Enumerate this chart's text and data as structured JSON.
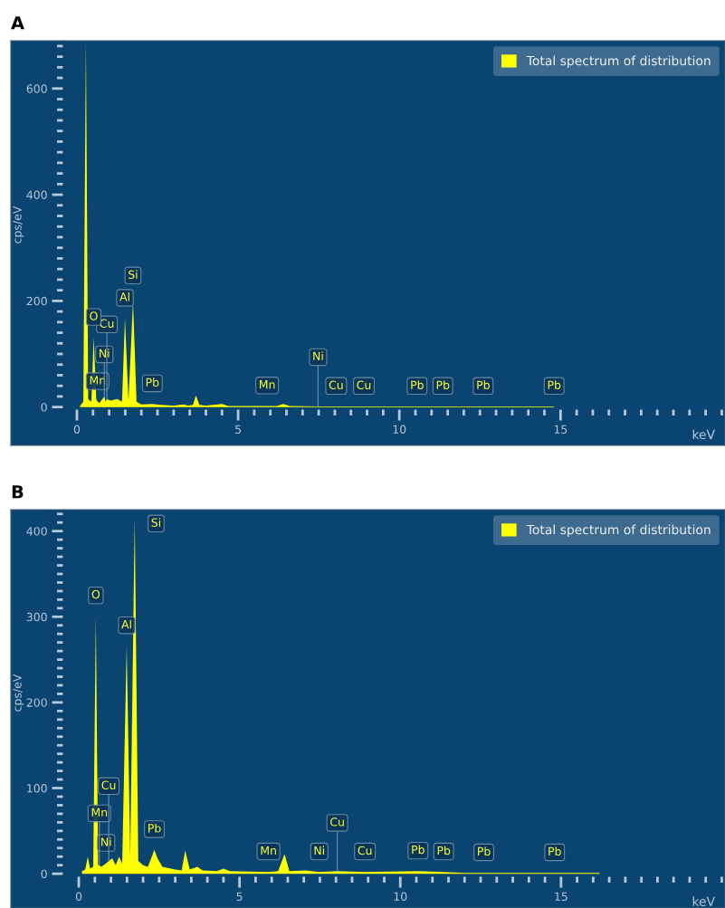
{
  "chart_data": [
    {
      "type": "area",
      "title": "A",
      "xlabel": "keV",
      "ylabel": "cps/eV",
      "x": [
        0.1,
        0.2,
        0.28,
        0.35,
        0.45,
        0.52,
        0.6,
        0.64,
        0.7,
        0.85,
        0.89,
        0.93,
        1.04,
        1.25,
        1.4,
        1.49,
        1.6,
        1.74,
        1.85,
        2.0,
        2.34,
        2.6,
        3.0,
        3.3,
        3.45,
        3.6,
        3.69,
        3.8,
        4.0,
        4.5,
        4.7,
        5.9,
        6.2,
        6.4,
        6.6,
        7.48,
        8.04,
        8.9,
        10.55,
        11.35,
        12.6,
        13.1,
        14.8
      ],
      "series": [
        {
          "name": "Total spectrum of distribution",
          "color": "#ffff00",
          "values": [
            3,
            10,
            690,
            15,
            10,
            131,
            15,
            10,
            8,
            20,
            10,
            15,
            12,
            15,
            10,
            167,
            12,
            199,
            10,
            5,
            6,
            4,
            3,
            5,
            3,
            4,
            22,
            4,
            3,
            6,
            2,
            2,
            2,
            6,
            2,
            1,
            1,
            1,
            1,
            1,
            1,
            1,
            1
          ]
        }
      ],
      "xlim": [
        -0.42,
        20.1
      ],
      "ylim": [
        -4,
        690
      ],
      "xticks": [
        0,
        5,
        10,
        15
      ],
      "yticks": [
        0,
        200,
        400,
        600
      ],
      "legend": "top right",
      "annotations": [
        {
          "text": "Mn",
          "x": 0.64,
          "y": 10
        },
        {
          "text": "Ni",
          "x": 0.85,
          "y": 20
        },
        {
          "text": "Cu",
          "x": 0.93,
          "y": 15
        },
        {
          "text": "O",
          "x": 0.52,
          "y": 131
        },
        {
          "text": "Al",
          "x": 1.49,
          "y": 167
        },
        {
          "text": "Si",
          "x": 1.74,
          "y": 199
        },
        {
          "text": "Pb",
          "x": 2.34,
          "y": 6
        },
        {
          "text": "Mn",
          "x": 5.9,
          "y": 2
        },
        {
          "text": "Cu",
          "x": 8.04,
          "y": 1
        },
        {
          "text": "Ni",
          "x": 7.48,
          "y": 1
        },
        {
          "text": "Cu",
          "x": 8.9,
          "y": 1
        },
        {
          "text": "Pb",
          "x": 10.55,
          "y": 1
        },
        {
          "text": "Pb",
          "x": 11.35,
          "y": 1
        },
        {
          "text": "Pb",
          "x": 12.6,
          "y": 1
        },
        {
          "text": "Pb",
          "x": 14.8,
          "y": 1
        }
      ]
    },
    {
      "type": "area",
      "title": "B",
      "xlabel": "keV",
      "ylabel": "cps/eV",
      "x": [
        0.1,
        0.2,
        0.28,
        0.35,
        0.45,
        0.53,
        0.6,
        0.64,
        0.7,
        0.85,
        0.93,
        1.04,
        1.15,
        1.25,
        1.35,
        1.49,
        1.6,
        1.74,
        1.85,
        2.0,
        2.15,
        2.35,
        2.45,
        2.6,
        3.0,
        3.2,
        3.31,
        3.45,
        3.69,
        3.85,
        4.3,
        4.5,
        4.7,
        5.9,
        6.2,
        6.4,
        6.55,
        7.06,
        7.48,
        8.04,
        8.9,
        10.55,
        11.35,
        12.0,
        12.6,
        14.8,
        16.2
      ],
      "series": [
        {
          "name": "Total spectrum of distribution",
          "color": "#ffff00",
          "values": [
            3,
            5,
            20,
            6,
            8,
            301,
            10,
            10,
            8,
            12,
            15,
            18,
            10,
            20,
            12,
            266,
            20,
            415,
            15,
            10,
            8,
            28,
            18,
            8,
            5,
            4,
            27,
            5,
            8,
            4,
            3,
            6,
            3,
            2,
            3,
            23,
            3,
            4,
            2,
            3,
            2,
            3,
            2,
            1,
            1,
            1,
            1
          ]
        }
      ],
      "xlim": [
        -0.48,
        20.1
      ],
      "ylim": [
        -3,
        425
      ],
      "xticks": [
        0,
        5,
        10,
        15
      ],
      "yticks": [
        0,
        100,
        200,
        300,
        400
      ],
      "legend": "top right",
      "annotations": [
        {
          "text": "Si",
          "x": 1.74,
          "y": 415
        },
        {
          "text": "O",
          "x": 0.53,
          "y": 301
        },
        {
          "text": "Al",
          "x": 1.49,
          "y": 266
        },
        {
          "text": "Ni",
          "x": 0.85,
          "y": 12
        },
        {
          "text": "Mn",
          "x": 0.64,
          "y": 10
        },
        {
          "text": "Cu",
          "x": 0.93,
          "y": 15
        },
        {
          "text": "Pb",
          "x": 2.35,
          "y": 28
        },
        {
          "text": "Mn",
          "x": 5.9,
          "y": 2
        },
        {
          "text": "Ni",
          "x": 7.48,
          "y": 2
        },
        {
          "text": "Cu",
          "x": 8.04,
          "y": 3
        },
        {
          "text": "Cu",
          "x": 8.9,
          "y": 2
        },
        {
          "text": "Pb",
          "x": 10.55,
          "y": 3
        },
        {
          "text": "Pb",
          "x": 11.35,
          "y": 2
        },
        {
          "text": "Pb",
          "x": 12.6,
          "y": 1
        },
        {
          "text": "Pb",
          "x": 14.8,
          "y": 1
        }
      ]
    }
  ]
}
